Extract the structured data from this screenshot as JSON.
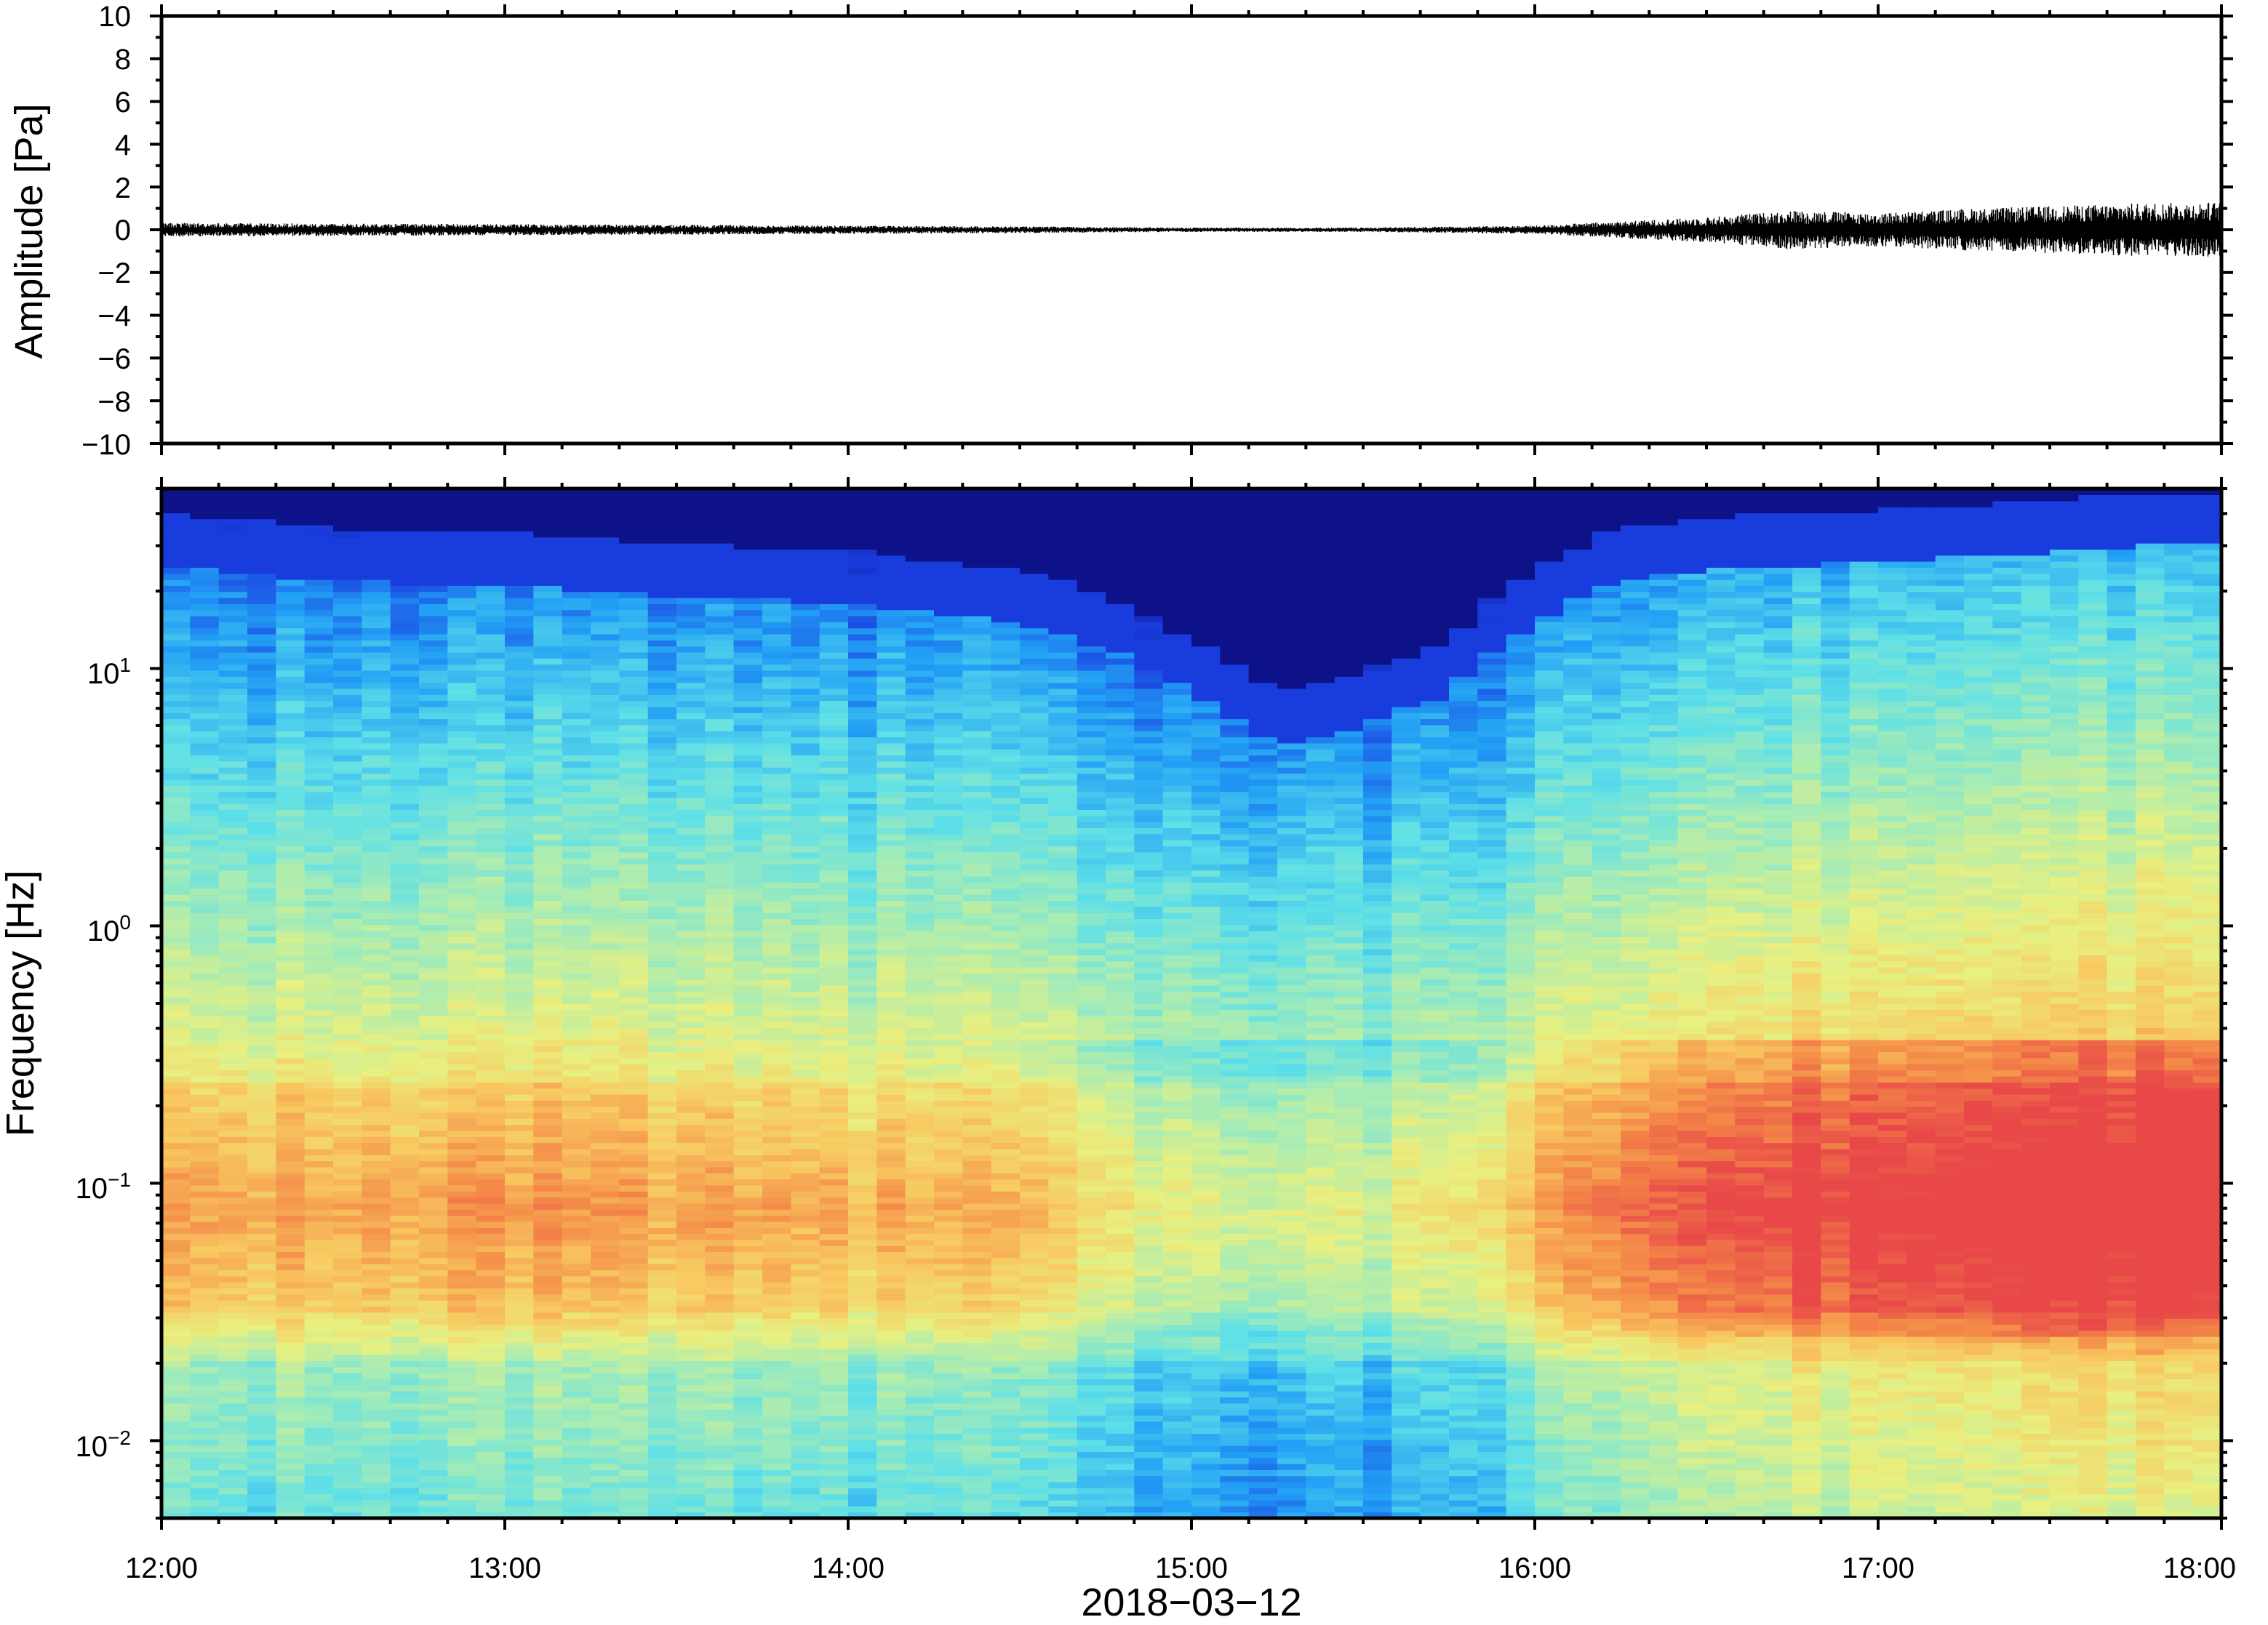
{
  "chart_data": [
    {
      "type": "line",
      "ylabel": "Amplitude [Pa]",
      "ylim": [
        -10,
        10
      ],
      "y_ticks": [
        -10,
        -8,
        -6,
        -4,
        -2,
        0,
        2,
        4,
        6,
        8,
        10
      ],
      "y_tick_labels": [
        "−10",
        "−8",
        "−6",
        "−4",
        "−2",
        "0",
        "2",
        "4",
        "6",
        "8",
        "10"
      ],
      "xlim": [
        "12:00",
        "18:00"
      ],
      "series": [
        {
          "color": "#000000",
          "x": [
            "12:00",
            "12:30",
            "13:00",
            "13:30",
            "14:00",
            "14:30",
            "15:00",
            "15:30",
            "16:00",
            "16:15",
            "16:30",
            "16:45",
            "17:00",
            "17:15",
            "17:30",
            "17:45",
            "18:00"
          ],
          "envelope": [
            0.25,
            0.22,
            0.2,
            0.18,
            0.15,
            0.12,
            0.08,
            0.08,
            0.15,
            0.3,
            0.45,
            0.7,
            0.6,
            0.75,
            0.85,
            0.95,
            1.0
          ]
        }
      ],
      "grid": false
    },
    {
      "type": "heatmap",
      "ylabel": "Frequency [Hz]",
      "yscale": "log",
      "ylim": [
        0.005,
        50
      ],
      "y_ticks": [
        0.01,
        0.1,
        1,
        10
      ],
      "y_tick_labels": [
        {
          "base": "10",
          "exp": "−2"
        },
        {
          "base": "10",
          "exp": "−1"
        },
        {
          "base": "10",
          "exp": "0"
        },
        {
          "base": "10",
          "exp": "1"
        }
      ],
      "x_ticks": [
        "12:00",
        "13:00",
        "14:00",
        "15:00",
        "16:00",
        "17:00",
        "18:00"
      ],
      "xlabel": "2018−03−12",
      "colormap": "jet",
      "colormap_colors": [
        "#0a0a78",
        "#1a3ee0",
        "#22a0f5",
        "#5ee0e8",
        "#a8ecb4",
        "#e8f080",
        "#f8c860",
        "#f48a48",
        "#e84848"
      ],
      "time_hours": [
        12.0,
        12.5,
        13.0,
        13.5,
        14.0,
        14.5,
        14.75,
        15.0,
        15.25,
        15.5,
        15.75,
        16.0,
        16.25,
        16.5,
        16.75,
        17.0,
        17.25,
        17.5,
        17.75,
        18.0
      ],
      "noise_ceiling_hz": [
        25,
        22,
        21,
        19,
        18,
        15,
        12,
        8,
        5,
        6,
        8,
        15,
        22,
        24,
        25,
        26,
        27,
        28,
        30,
        30
      ],
      "microbarom_intensity": [
        0.75,
        0.74,
        0.76,
        0.74,
        0.72,
        0.7,
        0.62,
        0.55,
        0.55,
        0.56,
        0.6,
        0.72,
        0.85,
        0.88,
        0.92,
        0.92,
        0.95,
        0.96,
        0.98,
        0.98
      ],
      "grid": false
    }
  ]
}
